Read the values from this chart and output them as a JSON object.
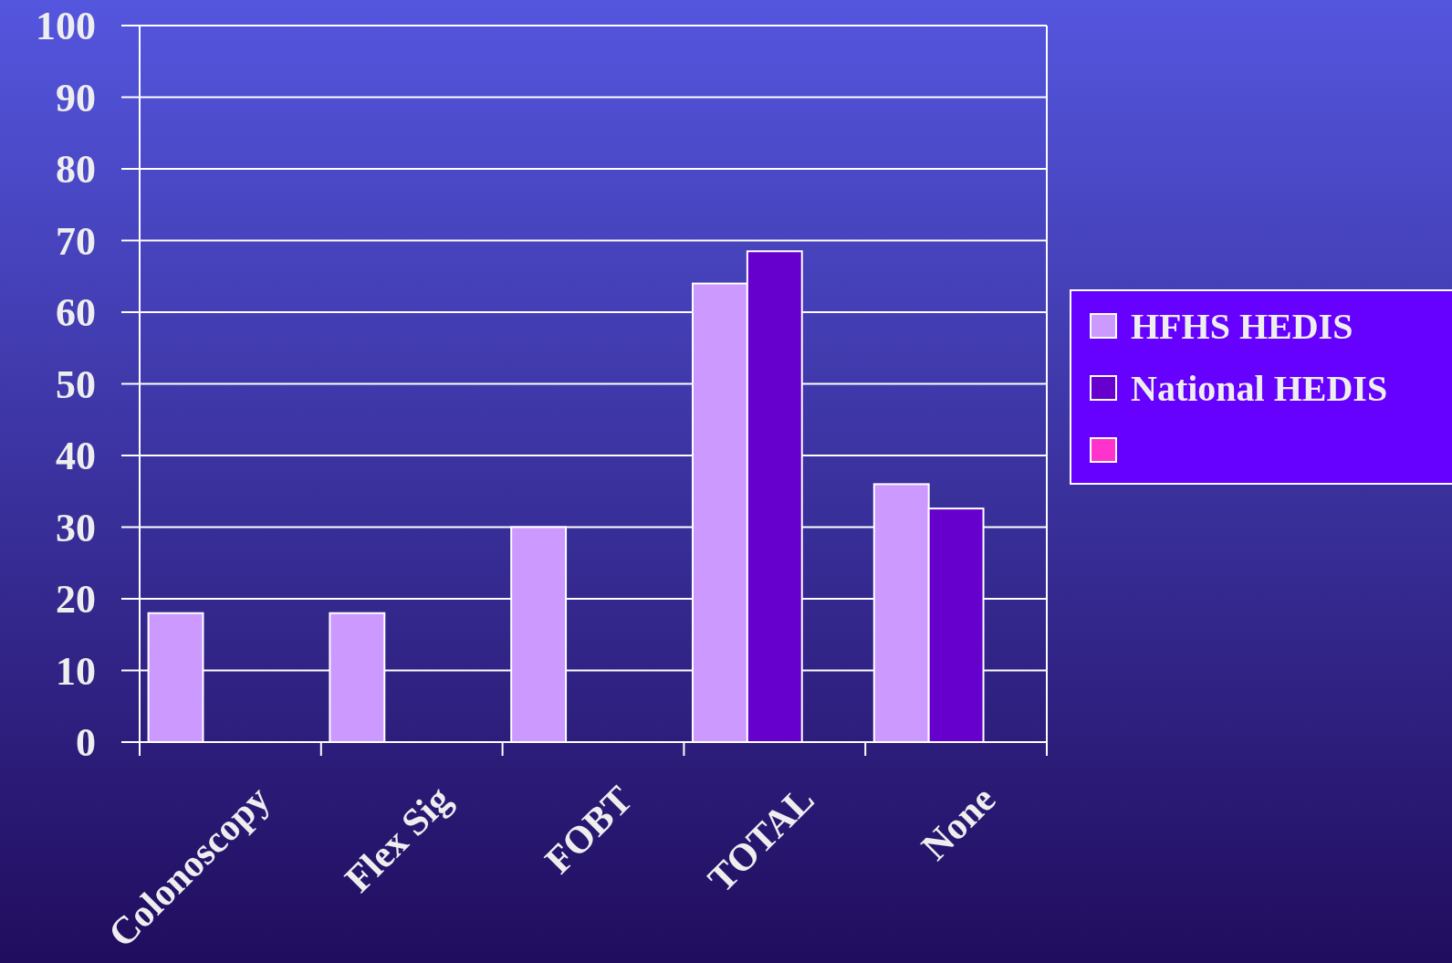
{
  "chart_data": {
    "type": "bar",
    "categories": [
      "Colonoscopy",
      "Flex Sig",
      "FOBT",
      "TOTAL",
      "None"
    ],
    "series": [
      {
        "name": "HFHS HEDIS",
        "color": "#cc99ff",
        "values": [
          18,
          18,
          30,
          64,
          36
        ]
      },
      {
        "name": "National HEDIS",
        "color": "#6600cc",
        "values": [
          null,
          null,
          null,
          68.5,
          32.6
        ]
      },
      {
        "color": "#ff33cc",
        "values": [
          null,
          null,
          null,
          null,
          null
        ]
      }
    ],
    "ylim": [
      0,
      100
    ],
    "yticks": [
      0,
      10,
      20,
      30,
      40,
      50,
      60,
      70,
      80,
      90,
      100
    ],
    "grid": "y",
    "legend": "right"
  }
}
